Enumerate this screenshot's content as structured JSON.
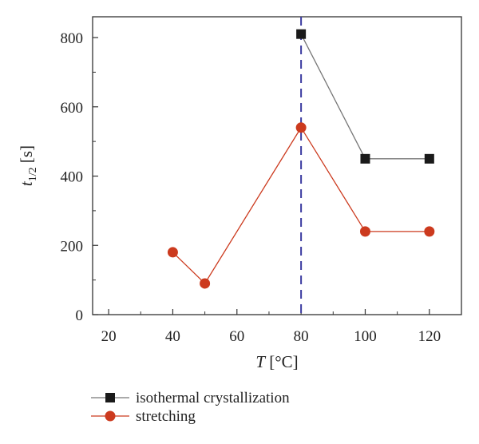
{
  "chart_data": {
    "type": "line",
    "title": "",
    "xlabel": {
      "var": "T",
      "unit": " [°C]"
    },
    "ylabel": {
      "var": "t",
      "sub": "1/2",
      "unit": " [s]"
    },
    "xlim": [
      15,
      130
    ],
    "ylim": [
      0,
      860
    ],
    "xticks": [
      20,
      40,
      60,
      80,
      100,
      120
    ],
    "xtick_labels": [
      "20",
      "40",
      "60",
      "80",
      "100",
      "120"
    ],
    "yticks": [
      0,
      200,
      400,
      600,
      800
    ],
    "ytick_labels": [
      "0",
      "200",
      "400",
      "600",
      "800"
    ],
    "grid": false,
    "legend_position": "bottom-outside",
    "reference_line": {
      "x": 80,
      "style": "dashed",
      "color": "#3a3aa0"
    },
    "series": [
      {
        "name": "isothermal crystallization",
        "marker": "square",
        "color": "#1a1a1a",
        "line_color": "#777777",
        "x": [
          80,
          100,
          120
        ],
        "y": [
          810,
          450,
          450
        ]
      },
      {
        "name": "stretching",
        "marker": "circle",
        "color": "#cc3a1e",
        "line_color": "#cc3a1e",
        "x": [
          40,
          50,
          80,
          100,
          120
        ],
        "y": [
          180,
          90,
          540,
          240,
          240
        ]
      }
    ]
  }
}
